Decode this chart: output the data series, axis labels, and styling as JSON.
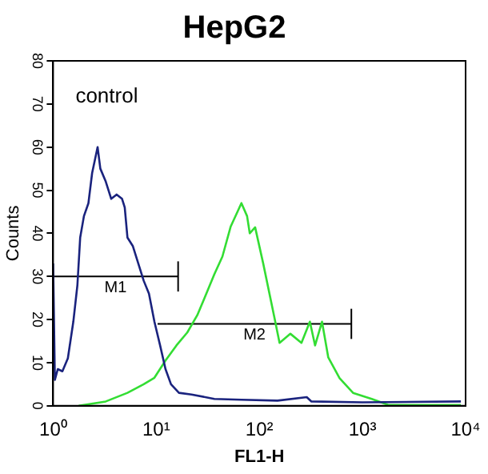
{
  "chart_data": {
    "type": "line",
    "title": "HepG2",
    "xlabel": "FL1-H",
    "ylabel": "Counts",
    "log": "x",
    "grid": false,
    "legend": false,
    "marker": "none",
    "line_style": "solid",
    "xlim": [
      1,
      10000
    ],
    "xticks": [
      {
        "value": 1,
        "label": "10⁰"
      },
      {
        "value": 10,
        "label": "10¹"
      },
      {
        "value": 100,
        "label": "10²"
      },
      {
        "value": 1000,
        "label": "10³"
      },
      {
        "value": 10000,
        "label": "10⁴"
      }
    ],
    "ylim": [
      0,
      80
    ],
    "yticks": [
      0,
      10,
      20,
      30,
      40,
      50,
      60,
      70,
      80
    ],
    "annotations": [
      {
        "text": "control"
      }
    ],
    "series": [
      {
        "color": "#1a237e",
        "x": [
          1.0,
          1.04,
          1.11,
          1.23,
          1.39,
          1.57,
          1.72,
          1.83,
          1.99,
          2.2,
          2.39,
          2.7,
          2.87,
          3.24,
          3.66,
          4.13,
          4.66,
          4.95,
          5.26,
          5.94,
          6.7,
          7.56,
          8.5,
          9.6,
          10.9,
          12.3,
          13.9,
          16.6,
          22,
          36.6,
          67,
          150,
          288,
          320,
          1000,
          9000
        ],
        "values": [
          33,
          6,
          8.5,
          8,
          11,
          19.5,
          28,
          39,
          44,
          47,
          54,
          60,
          55,
          52,
          48,
          49,
          48,
          46,
          39,
          37,
          33,
          29,
          26,
          19.5,
          14,
          8.5,
          5,
          3,
          2.6,
          1.6,
          1.4,
          1.2,
          2,
          1,
          0.8,
          1
        ]
      },
      {
        "color": "#33dd33",
        "x": [
          1.77,
          3.24,
          5.26,
          7.56,
          9.6,
          12.3,
          15.7,
          20,
          25,
          30.6,
          36.6,
          43.8,
          52.6,
          63,
          67,
          76,
          80.7,
          91,
          109,
          139,
          157,
          200,
          256,
          309,
          347,
          405,
          466,
          600,
          810,
          1230,
          1780,
          9000
        ],
        "values": [
          0,
          1,
          3,
          5,
          6.5,
          10.5,
          14,
          17,
          21,
          26,
          30.5,
          34.6,
          41.5,
          45.6,
          47,
          44,
          40,
          41.4,
          33,
          20.8,
          14.6,
          16.7,
          14.6,
          19.5,
          14,
          19.5,
          11.2,
          6.4,
          3,
          1.6,
          0.2,
          0.2
        ]
      },
      {
        "name": "M1",
        "color": "#000000",
        "x": [
          1,
          16.3
        ],
        "values": [
          30,
          30
        ],
        "errors": [
          null,
          3.5
        ]
      },
      {
        "name": "M2",
        "color": "#000000",
        "x": [
          10.3,
          780
        ],
        "values": [
          19,
          19
        ],
        "errors": [
          null,
          3.5
        ]
      }
    ]
  }
}
